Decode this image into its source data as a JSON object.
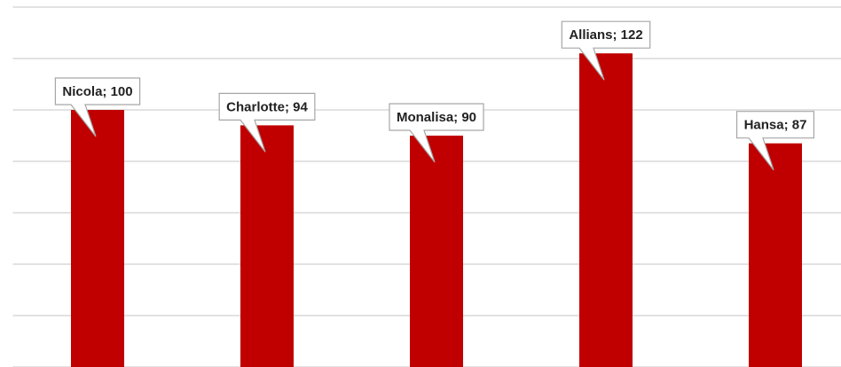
{
  "chart_data": {
    "type": "bar",
    "categories": [
      "Nicola",
      "Charlotte",
      "Monalisa",
      "Allians",
      "Hansa"
    ],
    "values": [
      100,
      94,
      90,
      122,
      87
    ],
    "value_labels": [
      "Nicola; 100",
      "Charlotte; 94",
      "Monalisa; 90",
      "Allians; 122",
      "Hansa; 87"
    ],
    "color": "#c00000",
    "ylim": [
      0,
      140
    ],
    "yticks": [
      0,
      20,
      40,
      60,
      80,
      100,
      120,
      140
    ],
    "grid": true
  }
}
